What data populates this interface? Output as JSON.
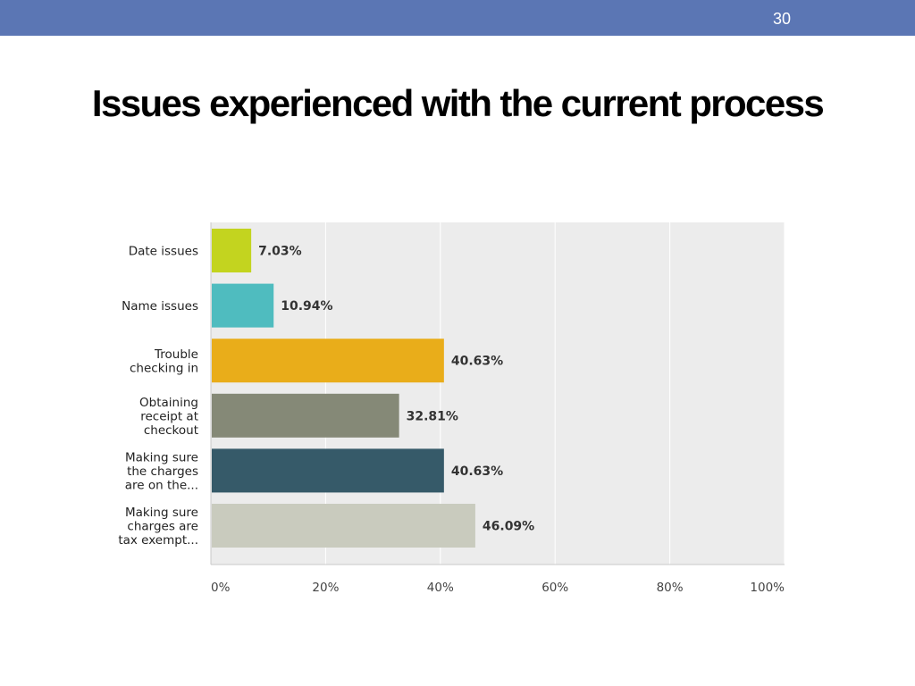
{
  "slide": {
    "number": "30",
    "title": "Issues experienced with the current process"
  },
  "colors": {
    "topbar": "#5b76b4",
    "plot_background": "#ececec",
    "gridline": "#ffffff",
    "axis": "#c8c8c8"
  },
  "chart_data": {
    "type": "bar",
    "orientation": "horizontal",
    "categories": [
      [
        "Date issues"
      ],
      [
        "Name issues"
      ],
      [
        "Trouble",
        "checking in"
      ],
      [
        "Obtaining",
        "receipt at",
        "checkout"
      ],
      [
        "Making sure",
        "the charges",
        "are on the..."
      ],
      [
        "Making sure",
        "charges are",
        "tax exempt..."
      ]
    ],
    "values": [
      7.03,
      10.94,
      40.63,
      32.81,
      40.63,
      46.09
    ],
    "value_labels": [
      "7.03%",
      "10.94%",
      "40.63%",
      "32.81%",
      "40.63%",
      "46.09%"
    ],
    "bar_colors": [
      "#c3d41f",
      "#4fbcbf",
      "#e9ad1a",
      "#858977",
      "#365a69",
      "#c9cbbe"
    ],
    "xlim": [
      0,
      100
    ],
    "x_ticks": [
      0,
      20,
      40,
      60,
      80,
      100
    ],
    "x_tick_labels": [
      "0%",
      "20%",
      "40%",
      "60%",
      "80%",
      "100%"
    ],
    "grid": true
  }
}
